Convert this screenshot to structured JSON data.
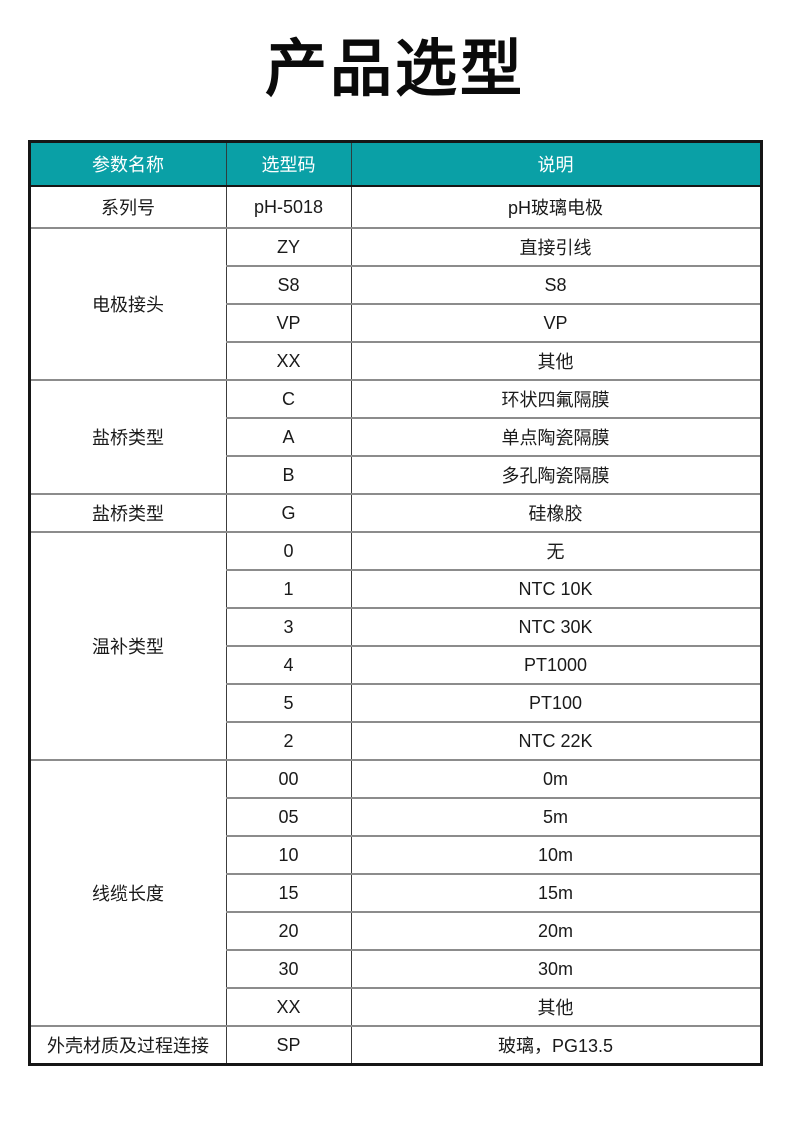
{
  "title": "产品选型",
  "colors": {
    "header_bg": "#0aa0a6",
    "header_text": "#ffffff",
    "body_text": "#1a1a1a",
    "grid_horizontal": "#8c8c8c",
    "grid_vertical": "#3c3c3c",
    "outer_border": "#161616",
    "page_bg": "#ffffff"
  },
  "table": {
    "headers": [
      "参数名称",
      "选型码",
      "说明"
    ],
    "groups": [
      {
        "param": "系列号",
        "rows": [
          {
            "code": "pH-5018",
            "desc": "pH玻璃电极"
          }
        ]
      },
      {
        "param": "电极接头",
        "rows": [
          {
            "code": "ZY",
            "desc": "直接引线"
          },
          {
            "code": "S8",
            "desc": "S8"
          },
          {
            "code": "VP",
            "desc": "VP"
          },
          {
            "code": "XX",
            "desc": "其他"
          }
        ]
      },
      {
        "param": "盐桥类型",
        "rows": [
          {
            "code": "C",
            "desc": "环状四氟隔膜"
          },
          {
            "code": "A",
            "desc": "单点陶瓷隔膜"
          },
          {
            "code": "B",
            "desc": "多孔陶瓷隔膜"
          }
        ]
      },
      {
        "param": "盐桥类型",
        "rows": [
          {
            "code": "G",
            "desc": "硅橡胶"
          }
        ]
      },
      {
        "param": "温补类型",
        "rows": [
          {
            "code": "0",
            "desc": "无"
          },
          {
            "code": "1",
            "desc": "NTC 10K"
          },
          {
            "code": "3",
            "desc": "NTC 30K"
          },
          {
            "code": "4",
            "desc": "PT1000"
          },
          {
            "code": "5",
            "desc": "PT100"
          },
          {
            "code": "2",
            "desc": "NTC 22K"
          }
        ]
      },
      {
        "param": "线缆长度",
        "rows": [
          {
            "code": "00",
            "desc": "0m"
          },
          {
            "code": "05",
            "desc": "5m"
          },
          {
            "code": "10",
            "desc": "10m"
          },
          {
            "code": "15",
            "desc": "15m"
          },
          {
            "code": "20",
            "desc": "20m"
          },
          {
            "code": "30",
            "desc": "30m"
          },
          {
            "code": "XX",
            "desc": "其他"
          }
        ]
      },
      {
        "param": "外壳材质及过程连接",
        "rows": [
          {
            "code": "SP",
            "desc": "玻璃，PG13.5"
          }
        ]
      }
    ]
  }
}
